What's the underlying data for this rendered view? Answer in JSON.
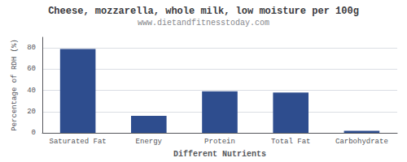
{
  "chart_data": {
    "type": "bar",
    "title": "Cheese, mozzarella, whole milk, low moisture per 100g",
    "subtitle": "www.dietandfitnesstoday.com",
    "xlabel": "Different Nutrients",
    "ylabel": "Percentage of RDH (%)",
    "categories": [
      "Saturated Fat",
      "Energy",
      "Protein",
      "Total Fat",
      "Carbohydrate"
    ],
    "values": [
      79,
      16,
      39,
      38,
      2
    ],
    "color": "#2e4d8e",
    "ylim": [
      0,
      90
    ],
    "yticks": [
      0,
      20,
      40,
      60,
      80
    ],
    "grid": true
  }
}
